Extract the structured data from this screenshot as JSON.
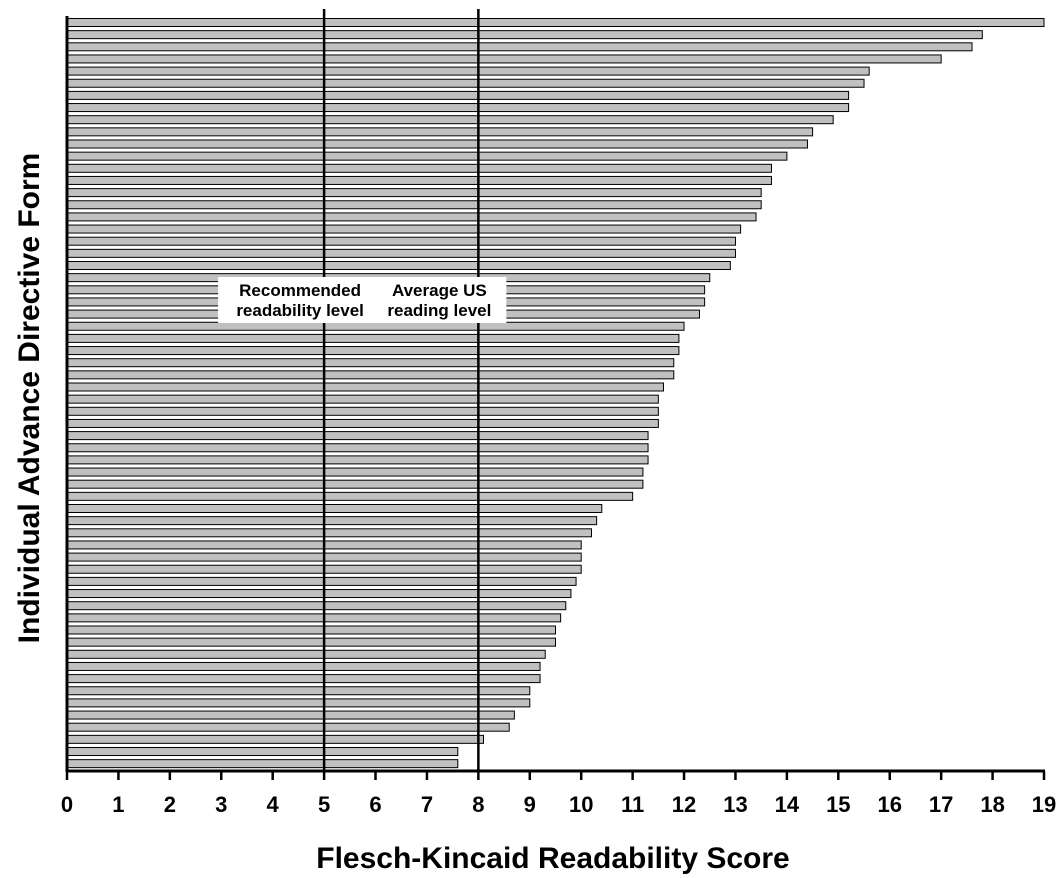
{
  "chart_data": {
    "type": "bar",
    "orientation": "horizontal",
    "xlabel": "Flesch-Kincaid Readability Score",
    "ylabel": "Individual Advance Directive Form",
    "xlim": [
      0,
      19
    ],
    "xticks": [
      "0",
      "1",
      "2",
      "3",
      "4",
      "5",
      "6",
      "7",
      "8",
      "9",
      "10",
      "11",
      "12",
      "13",
      "14",
      "15",
      "16",
      "17",
      "18",
      "19"
    ],
    "grid": false,
    "bar_color": "#c0c0c0",
    "values": [
      19.0,
      17.8,
      17.6,
      17.0,
      15.6,
      15.5,
      15.2,
      15.2,
      14.9,
      14.5,
      14.4,
      14.0,
      13.7,
      13.7,
      13.5,
      13.5,
      13.4,
      13.1,
      13.0,
      13.0,
      12.9,
      12.5,
      12.4,
      12.4,
      12.3,
      12.0,
      11.9,
      11.9,
      11.8,
      11.8,
      11.6,
      11.5,
      11.5,
      11.5,
      11.3,
      11.3,
      11.3,
      11.2,
      11.2,
      11.0,
      10.4,
      10.3,
      10.2,
      10.0,
      10.0,
      10.0,
      9.9,
      9.8,
      9.7,
      9.6,
      9.5,
      9.5,
      9.3,
      9.2,
      9.2,
      9.0,
      9.0,
      8.7,
      8.6,
      8.1,
      7.6,
      7.6
    ],
    "reference_lines": [
      {
        "x": 5,
        "label_line1": "Recommended",
        "label_line2": "readability level"
      },
      {
        "x": 8,
        "label_line1": "Average US",
        "label_line2": "reading level"
      }
    ]
  }
}
